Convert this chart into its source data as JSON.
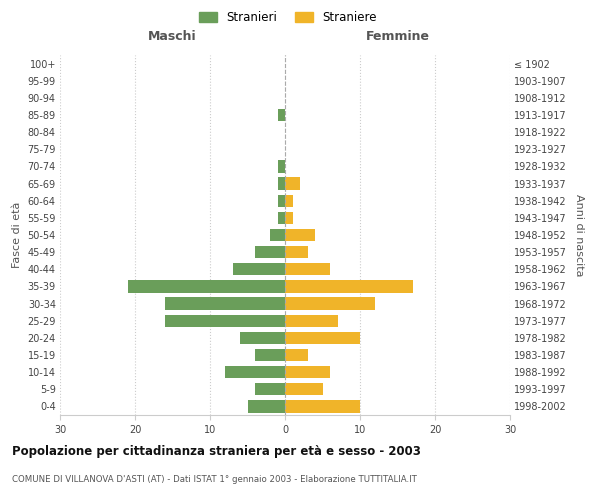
{
  "age_groups": [
    "100+",
    "95-99",
    "90-94",
    "85-89",
    "80-84",
    "75-79",
    "70-74",
    "65-69",
    "60-64",
    "55-59",
    "50-54",
    "45-49",
    "40-44",
    "35-39",
    "30-34",
    "25-29",
    "20-24",
    "15-19",
    "10-14",
    "5-9",
    "0-4"
  ],
  "birth_years": [
    "≤ 1902",
    "1903-1907",
    "1908-1912",
    "1913-1917",
    "1918-1922",
    "1923-1927",
    "1928-1932",
    "1933-1937",
    "1938-1942",
    "1943-1947",
    "1948-1952",
    "1953-1957",
    "1958-1962",
    "1963-1967",
    "1968-1972",
    "1973-1977",
    "1978-1982",
    "1983-1987",
    "1988-1992",
    "1993-1997",
    "1998-2002"
  ],
  "males": [
    0,
    0,
    0,
    1,
    0,
    0,
    1,
    1,
    1,
    1,
    2,
    4,
    7,
    21,
    16,
    16,
    6,
    4,
    8,
    4,
    5
  ],
  "females": [
    0,
    0,
    0,
    0,
    0,
    0,
    0,
    2,
    1,
    1,
    4,
    3,
    6,
    17,
    12,
    7,
    10,
    3,
    6,
    5,
    10
  ],
  "male_color": "#6a9e5a",
  "female_color": "#f0b429",
  "center_line_color": "#aaaaaa",
  "grid_color": "#cccccc",
  "background_color": "#ffffff",
  "title": "Popolazione per cittadinanza straniera per età e sesso - 2003",
  "subtitle": "COMUNE DI VILLANOVA D'ASTI (AT) - Dati ISTAT 1° gennaio 2003 - Elaborazione TUTTITALIA.IT",
  "xlabel_left": "Maschi",
  "xlabel_right": "Femmine",
  "ylabel_left": "Fasce di età",
  "ylabel_right": "Anni di nascita",
  "legend_male": "Stranieri",
  "legend_female": "Straniere",
  "xlim": 30
}
